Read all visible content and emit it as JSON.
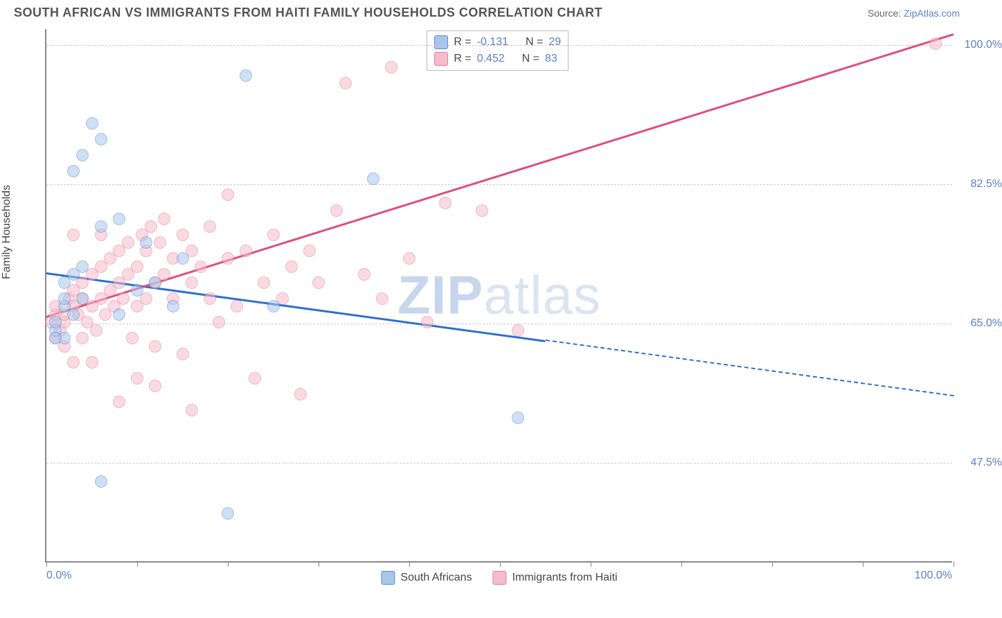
{
  "header": {
    "title": "SOUTH AFRICAN VS IMMIGRANTS FROM HAITI FAMILY HOUSEHOLDS CORRELATION CHART",
    "source_prefix": "Source: ",
    "source_link": "ZipAtlas.com"
  },
  "ylabel": "Family Households",
  "watermark_zip": "ZIP",
  "watermark_atlas": "atlas",
  "chart": {
    "type": "scatter",
    "background_color": "#ffffff",
    "grid_color": "#cccccc",
    "axis_color": "#888888",
    "xlim": [
      0,
      100
    ],
    "ylim": [
      35,
      102
    ],
    "ytick_values": [
      47.5,
      65.0,
      82.5,
      100.0
    ],
    "ytick_labels": [
      "47.5%",
      "65.0%",
      "82.5%",
      "100.0%"
    ],
    "xtick_left": "0.0%",
    "xtick_right": "100.0%",
    "x_minor_ticks": [
      0,
      10,
      20,
      30,
      40,
      50,
      60,
      70,
      80,
      90,
      100
    ],
    "point_radius": 9,
    "point_opacity": 0.55
  },
  "series": {
    "blue": {
      "label": "South Africans",
      "fill": "#a8c5ec",
      "stroke": "#5b8fd6",
      "line_color": "#2e6fd1",
      "R": "-0.131",
      "N": "29",
      "trend": {
        "x1": 0,
        "y1": 71.5,
        "x2": 100,
        "y2": 56,
        "solid_until_x": 55
      },
      "points": [
        [
          1,
          64
        ],
        [
          1,
          65
        ],
        [
          2,
          63
        ],
        [
          2,
          67
        ],
        [
          2,
          70
        ],
        [
          3,
          71
        ],
        [
          3,
          84
        ],
        [
          4,
          86
        ],
        [
          4,
          68
        ],
        [
          5,
          90
        ],
        [
          6,
          88
        ],
        [
          6,
          77
        ],
        [
          8,
          78
        ],
        [
          8,
          66
        ],
        [
          10,
          69
        ],
        [
          11,
          75
        ],
        [
          12,
          70
        ],
        [
          14,
          67
        ],
        [
          15,
          73
        ],
        [
          22,
          96
        ],
        [
          25,
          67
        ],
        [
          36,
          83
        ],
        [
          6,
          45
        ],
        [
          20,
          41
        ],
        [
          52,
          53
        ],
        [
          1,
          63
        ],
        [
          3,
          66
        ],
        [
          4,
          72
        ],
        [
          2,
          68
        ]
      ]
    },
    "pink": {
      "label": "Immigrants from Haiti",
      "fill": "#f5bccb",
      "stroke": "#e67a9a",
      "line_color": "#e04d7a",
      "R": "0.452",
      "N": "83",
      "trend": {
        "x1": 0,
        "y1": 66,
        "x2": 100,
        "y2": 101.5,
        "solid_until_x": 100
      },
      "points": [
        [
          0.5,
          65
        ],
        [
          1,
          66
        ],
        [
          1,
          67
        ],
        [
          1.5,
          64
        ],
        [
          2,
          65
        ],
        [
          2,
          66
        ],
        [
          2.5,
          68
        ],
        [
          3,
          67
        ],
        [
          3,
          69
        ],
        [
          3.5,
          66
        ],
        [
          4,
          68
        ],
        [
          4,
          70
        ],
        [
          4.5,
          65
        ],
        [
          5,
          67
        ],
        [
          5,
          71
        ],
        [
          5.5,
          64
        ],
        [
          6,
          68
        ],
        [
          6,
          72
        ],
        [
          6.5,
          66
        ],
        [
          7,
          69
        ],
        [
          7,
          73
        ],
        [
          7.5,
          67
        ],
        [
          8,
          70
        ],
        [
          8,
          74
        ],
        [
          8.5,
          68
        ],
        [
          9,
          71
        ],
        [
          9,
          75
        ],
        [
          9.5,
          63
        ],
        [
          10,
          67
        ],
        [
          10,
          72
        ],
        [
          10.5,
          76
        ],
        [
          11,
          68
        ],
        [
          11,
          74
        ],
        [
          11.5,
          77
        ],
        [
          12,
          70
        ],
        [
          12,
          62
        ],
        [
          12.5,
          75
        ],
        [
          13,
          71
        ],
        [
          13,
          78
        ],
        [
          14,
          68
        ],
        [
          14,
          73
        ],
        [
          15,
          76
        ],
        [
          15,
          61
        ],
        [
          16,
          70
        ],
        [
          16,
          74
        ],
        [
          17,
          72
        ],
        [
          18,
          68
        ],
        [
          18,
          77
        ],
        [
          19,
          65
        ],
        [
          20,
          73
        ],
        [
          20,
          81
        ],
        [
          21,
          67
        ],
        [
          22,
          74
        ],
        [
          23,
          58
        ],
        [
          24,
          70
        ],
        [
          25,
          76
        ],
        [
          26,
          68
        ],
        [
          27,
          72
        ],
        [
          28,
          56
        ],
        [
          29,
          74
        ],
        [
          30,
          70
        ],
        [
          32,
          79
        ],
        [
          33,
          95
        ],
        [
          35,
          71
        ],
        [
          37,
          68
        ],
        [
          38,
          97
        ],
        [
          40,
          73
        ],
        [
          42,
          65
        ],
        [
          44,
          80
        ],
        [
          48,
          79
        ],
        [
          52,
          64
        ],
        [
          98,
          100
        ],
        [
          1,
          63
        ],
        [
          2,
          62
        ],
        [
          3,
          60
        ],
        [
          4,
          63
        ],
        [
          5,
          60
        ],
        [
          8,
          55
        ],
        [
          10,
          58
        ],
        [
          12,
          57
        ],
        [
          16,
          54
        ],
        [
          3,
          76
        ],
        [
          6,
          76
        ]
      ]
    }
  },
  "stats_labels": {
    "R": "R =",
    "N": "N ="
  },
  "legend_items": [
    {
      "key": "blue",
      "label": "South Africans"
    },
    {
      "key": "pink",
      "label": "Immigrants from Haiti"
    }
  ]
}
